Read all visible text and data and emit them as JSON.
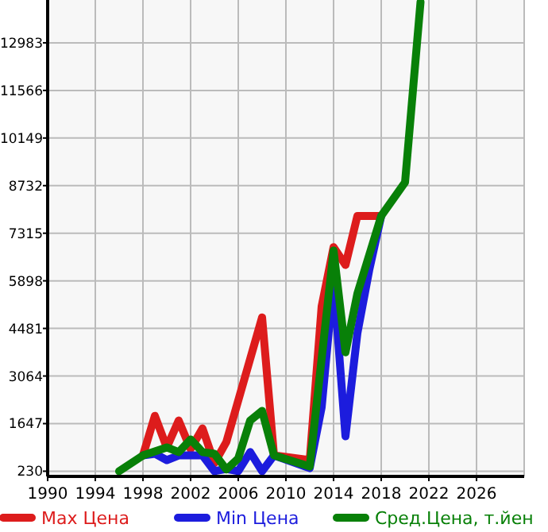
{
  "chart_data": {
    "type": "line",
    "xlim": [
      1990,
      2030
    ],
    "xticks": [
      1990,
      1994,
      1998,
      2002,
      2006,
      2010,
      2014,
      2018,
      2022,
      2026
    ],
    "ylim": [
      75,
      14258
    ],
    "yticks": [
      230,
      1647,
      3064,
      4481,
      5898,
      7315,
      8732,
      10149,
      11566,
      12983
    ],
    "grid": true,
    "legend": "bottom",
    "marker": "none",
    "line_style": "solid",
    "series": [
      {
        "name": "Max Цена",
        "color": "#dd1c1c",
        "x": [
          1998,
          1999,
          2000,
          2001,
          2002,
          2003,
          2004,
          2005,
          2008,
          2009,
          2012,
          2013,
          2014,
          2015,
          2016,
          2018
        ],
        "values": [
          700,
          1880,
          940,
          1740,
          890,
          1505,
          470,
          1100,
          4810,
          700,
          560,
          5140,
          6900,
          6370,
          7830,
          7830
        ]
      },
      {
        "name": "Min Цена",
        "color": "#1c1cdd",
        "x": [
          1998,
          1999,
          2000,
          2001,
          2002,
          2003,
          2004,
          2005,
          2006,
          2007,
          2008,
          2009,
          2012,
          2013,
          2014,
          2015,
          2016,
          2017,
          2018
        ],
        "values": [
          700,
          750,
          560,
          700,
          700,
          700,
          230,
          300,
          230,
          800,
          230,
          700,
          320,
          2130,
          5910,
          1270,
          4340,
          6230,
          7830
        ]
      },
      {
        "name": "Сред.Цена, т.йен",
        "color": "#088008",
        "x": [
          1996,
          1998,
          2000,
          2001,
          2002,
          2003,
          2004,
          2005,
          2006,
          2007,
          2008,
          2009,
          2012,
          2014,
          2015,
          2016,
          2018,
          2020,
          2021.3
        ],
        "values": [
          230,
          700,
          940,
          800,
          1175,
          800,
          750,
          280,
          610,
          1740,
          2025,
          700,
          370,
          6800,
          3770,
          5520,
          7830,
          8830,
          14200
        ]
      }
    ]
  }
}
